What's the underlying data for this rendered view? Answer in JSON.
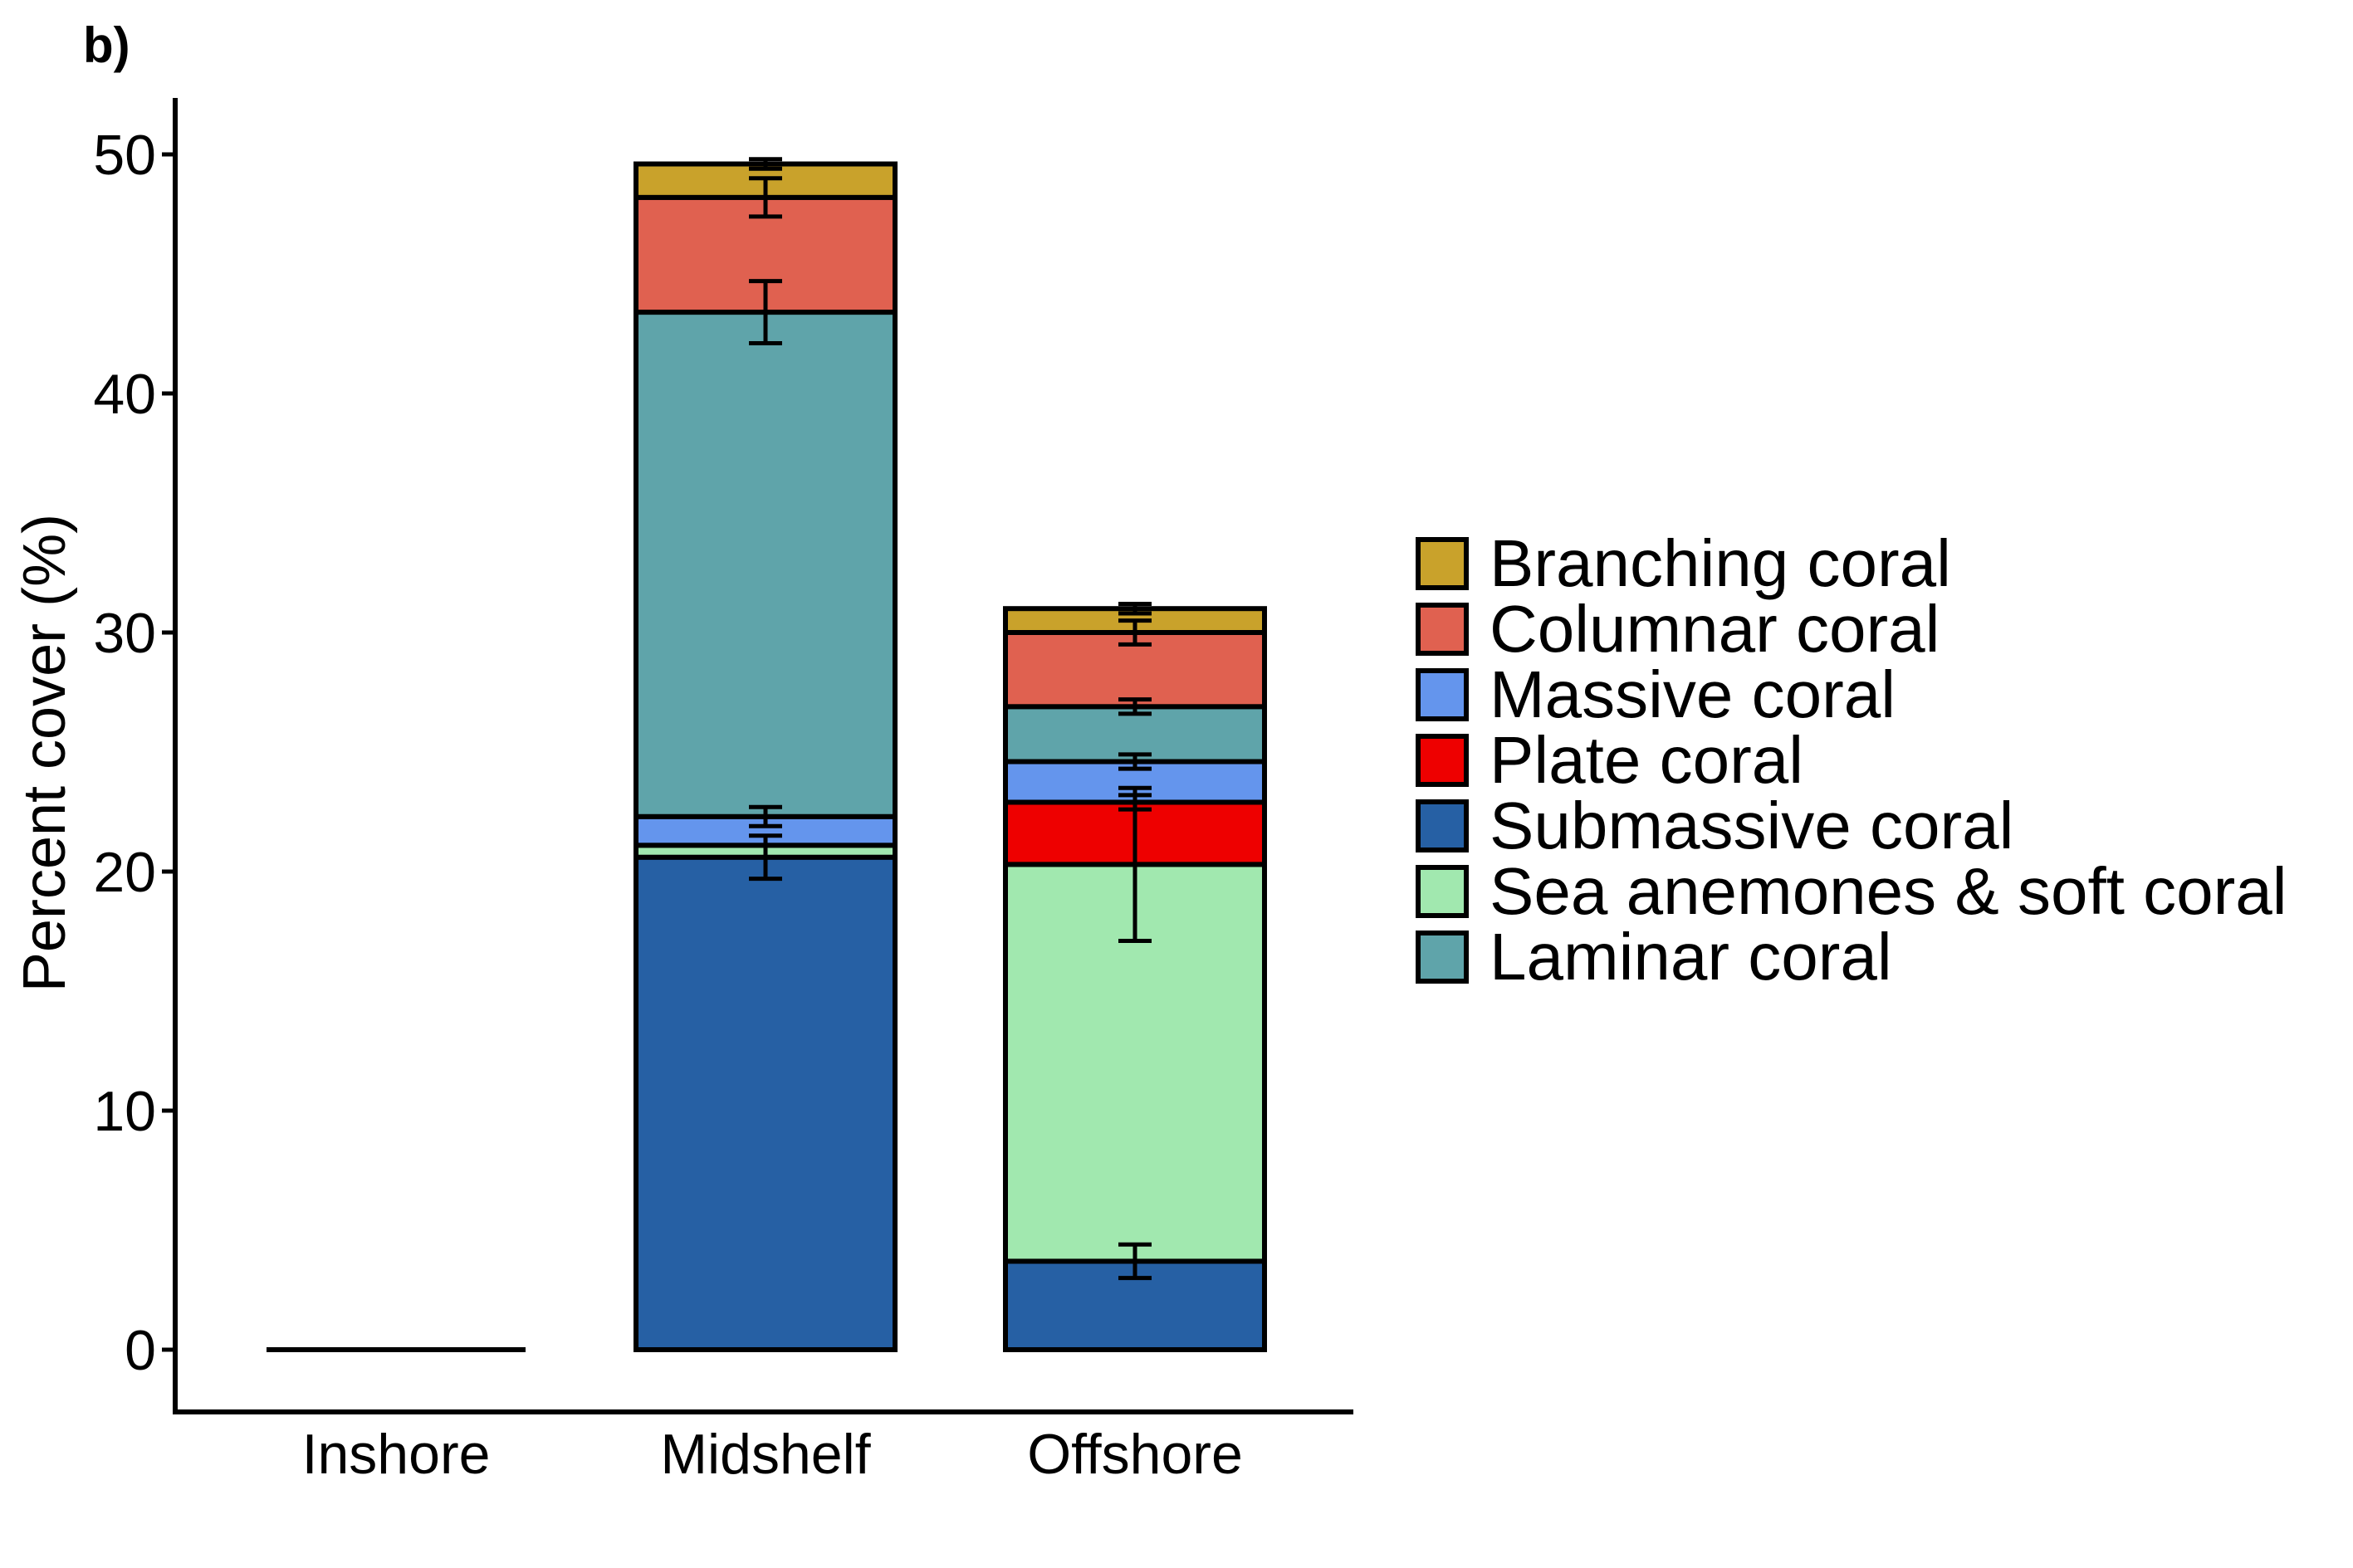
{
  "panel_label": "b)",
  "chart_data": {
    "type": "bar",
    "stacked": true,
    "title": "",
    "xlabel": "",
    "ylabel": "Percent cover (%)",
    "ylim": [
      0,
      50
    ],
    "yticks": [
      0,
      10,
      20,
      30,
      40,
      50
    ],
    "grid": false,
    "legend_position": "right",
    "categories": [
      "Inshore",
      "Midshelf",
      "Offshore"
    ],
    "series": [
      {
        "name": "Submassive coral",
        "color": "#2660A4",
        "values": [
          0,
          20.6,
          3.7
        ],
        "errors": [
          0,
          0.9,
          0.7
        ]
      },
      {
        "name": "Sea anemones & soft coral",
        "color": "#A1E8AF",
        "values": [
          0,
          0.5,
          16.6
        ],
        "errors": [
          0,
          0,
          3.2
        ]
      },
      {
        "name": "Plate coral",
        "color": "#EE0000",
        "values": [
          0,
          0,
          2.6
        ],
        "errors": [
          0,
          0,
          0.3
        ]
      },
      {
        "name": "Massive coral",
        "color": "#6495ED",
        "values": [
          0,
          1.2,
          1.7
        ],
        "errors": [
          0,
          0.4,
          0.3
        ]
      },
      {
        "name": "Laminar coral",
        "color": "#5FA4AA",
        "values": [
          0,
          21.1,
          2.3
        ],
        "errors": [
          0,
          1.3,
          0.3
        ]
      },
      {
        "name": "Columnar coral",
        "color": "#E06150",
        "values": [
          0,
          4.8,
          3.1
        ],
        "errors": [
          0,
          0.8,
          0.5
        ]
      },
      {
        "name": "Branching coral",
        "color": "#C9A22B",
        "values": [
          0,
          1.4,
          1.0
        ],
        "errors": [
          0,
          0.2,
          0.2
        ]
      }
    ],
    "legend_order": [
      "Branching coral",
      "Columnar coral",
      "Massive coral",
      "Plate coral",
      "Submassive coral",
      "Sea anemones & soft coral",
      "Laminar coral"
    ]
  }
}
